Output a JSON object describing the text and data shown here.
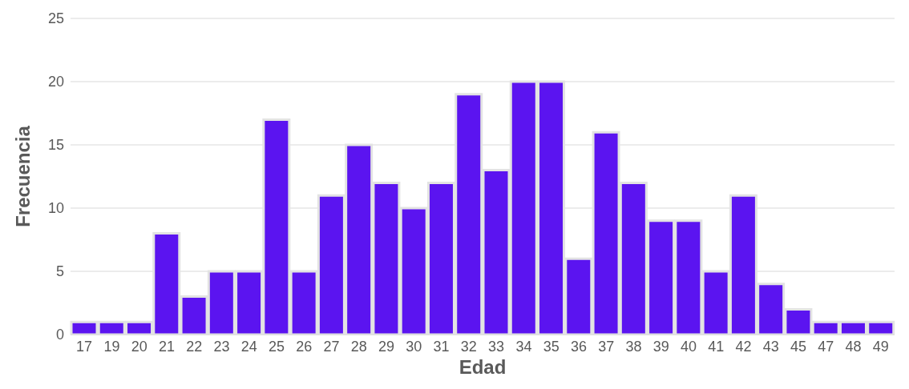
{
  "chart_data": {
    "type": "bar",
    "xlabel": "Edad",
    "ylabel": "Frecuencia",
    "categories": [
      "17",
      "19",
      "20",
      "21",
      "22",
      "23",
      "24",
      "25",
      "26",
      "27",
      "28",
      "29",
      "30",
      "31",
      "32",
      "33",
      "34",
      "35",
      "36",
      "37",
      "38",
      "39",
      "40",
      "41",
      "42",
      "43",
      "45",
      "47",
      "48",
      "49"
    ],
    "values": [
      1,
      1,
      1,
      8,
      3,
      5,
      5,
      17,
      5,
      11,
      15,
      12,
      10,
      12,
      19,
      13,
      20,
      20,
      6,
      16,
      12,
      9,
      9,
      5,
      11,
      4,
      2,
      1,
      1,
      1
    ],
    "color": "#5b14f0",
    "ylim": [
      0,
      25
    ],
    "yticks": [
      0,
      5,
      10,
      15,
      20,
      25
    ],
    "grid": "y"
  }
}
